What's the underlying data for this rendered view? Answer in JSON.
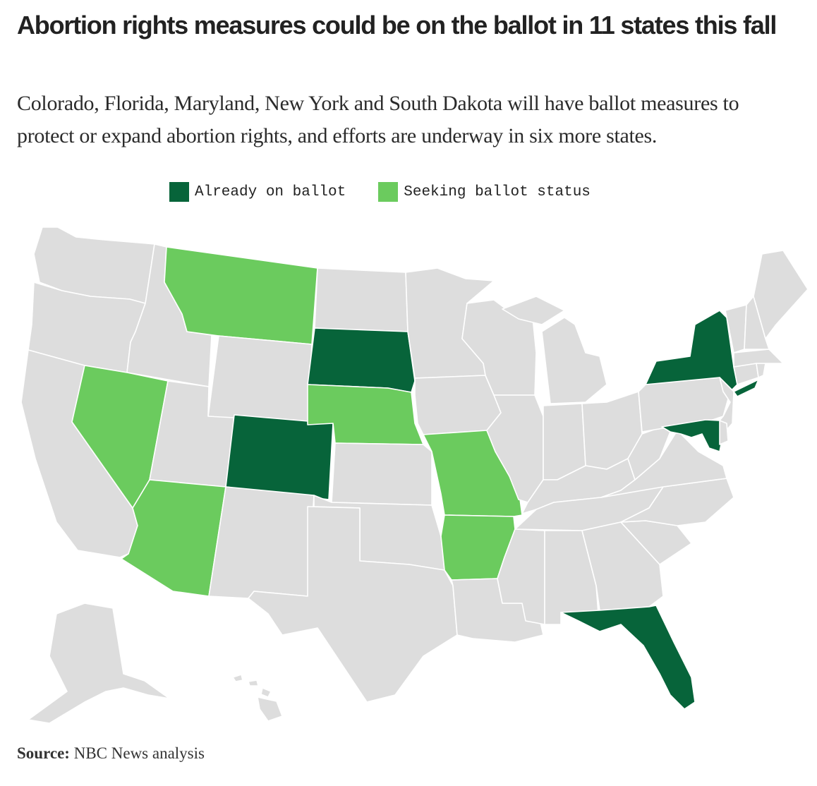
{
  "headline": "Abortion rights measures could be on the ballot in 11 states this fall",
  "dek": "Colorado, Florida, Maryland, New York and South Dakota will have ballot measures to protect or expand abortion rights, and efforts are underway in six more states.",
  "legend": {
    "on_ballot": {
      "label": "Already on ballot",
      "color": "#07643a"
    },
    "seeking": {
      "label": "Seeking ballot status",
      "color": "#6bcb5e"
    }
  },
  "colors": {
    "none": "#dddddd",
    "border": "#ffffff"
  },
  "map": {
    "states": {
      "WA": "none",
      "OR": "none",
      "CA": "none",
      "ID": "none",
      "NV": "seeking",
      "MT": "seeking",
      "WY": "none",
      "UT": "none",
      "AZ": "seeking",
      "CO": "on_ballot",
      "NM": "none",
      "ND": "none",
      "SD": "on_ballot",
      "NE": "seeking",
      "KS": "none",
      "OK": "none",
      "TX": "none",
      "MN": "none",
      "IA": "none",
      "MO": "seeking",
      "AR": "seeking",
      "LA": "none",
      "WI": "none",
      "IL": "none",
      "MI": "none",
      "IN": "none",
      "OH": "none",
      "KY": "none",
      "TN": "none",
      "MS": "none",
      "AL": "none",
      "GA": "none",
      "FL": "on_ballot",
      "SC": "none",
      "NC": "none",
      "VA": "none",
      "WV": "none",
      "PA": "none",
      "NY": "on_ballot",
      "NJ": "none",
      "DE": "none",
      "MD": "on_ballot",
      "CT": "none",
      "RI": "none",
      "MA": "none",
      "VT": "none",
      "NH": "none",
      "ME": "none",
      "AK": "none",
      "HI": "none"
    }
  },
  "source": {
    "label": "Source:",
    "text": "NBC News analysis"
  }
}
